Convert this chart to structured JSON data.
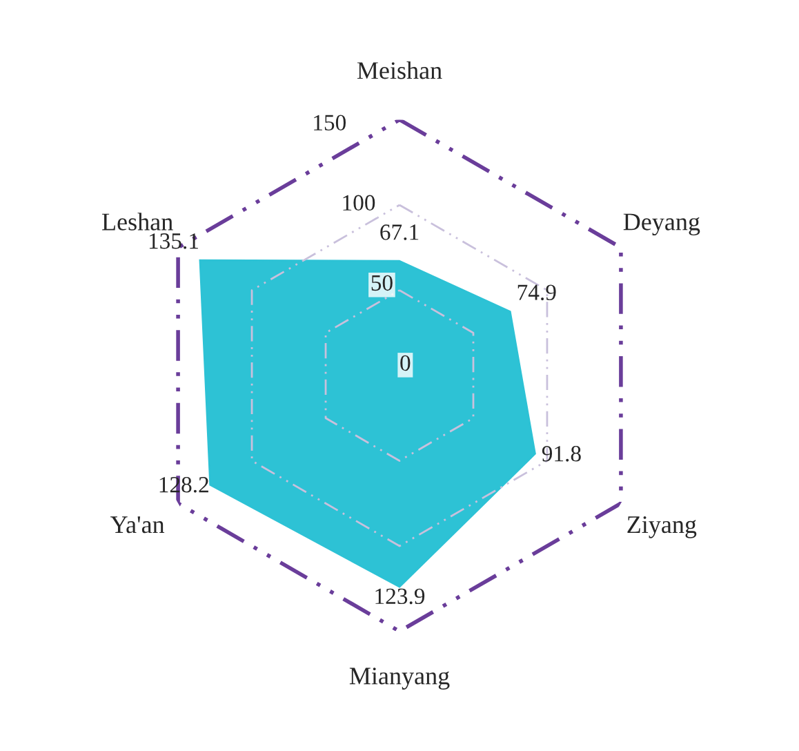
{
  "chart_data": {
    "type": "radar",
    "categories": [
      "Meishan",
      "Deyang",
      "Ziyang",
      "Mianyang",
      "Ya'an",
      "Leshan"
    ],
    "series": [
      {
        "color": "#22bfd3",
        "values": [
          67.1,
          74.9,
          91.8,
          123.9,
          128.2,
          135.1
        ]
      }
    ],
    "ylim": [
      0,
      150
    ],
    "yticks": [
      0,
      50,
      100,
      150
    ],
    "grid": true,
    "line_style": "dashed",
    "data_labels": true
  }
}
